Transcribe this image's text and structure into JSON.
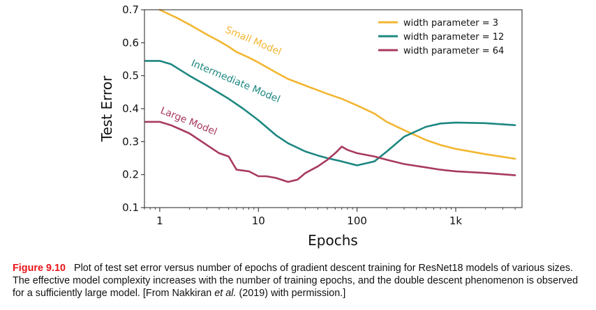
{
  "chart_data": {
    "type": "line",
    "xscale": "log",
    "xlim": [
      0.7,
      4700
    ],
    "ylim": [
      0.1,
      0.7
    ],
    "xlabel": "Epochs",
    "ylabel": "Test Error",
    "x_ticks": [
      {
        "value": 1,
        "label": "1"
      },
      {
        "value": 10,
        "label": "10"
      },
      {
        "value": 100,
        "label": "100"
      },
      {
        "value": 1000,
        "label": "1k"
      }
    ],
    "y_ticks": [
      {
        "value": 0.1,
        "label": "0.1"
      },
      {
        "value": 0.2,
        "label": "0.2"
      },
      {
        "value": 0.3,
        "label": "0.3"
      },
      {
        "value": 0.4,
        "label": "0.4"
      },
      {
        "value": 0.5,
        "label": "0.5"
      },
      {
        "value": 0.6,
        "label": "0.6"
      },
      {
        "value": 0.7,
        "label": "0.7"
      }
    ],
    "grid": false,
    "legend_position": "top-right",
    "series": [
      {
        "name": "width parameter = 3",
        "color": "#f2b631",
        "label": "Small Model",
        "x": [
          1,
          1.5,
          2,
          3,
          4,
          5,
          6,
          8,
          10,
          15,
          20,
          30,
          50,
          70,
          100,
          150,
          200,
          300,
          500,
          700,
          1000,
          2000,
          4000
        ],
        "y": [
          0.7,
          0.675,
          0.655,
          0.625,
          0.605,
          0.588,
          0.572,
          0.555,
          0.54,
          0.51,
          0.49,
          0.47,
          0.445,
          0.43,
          0.41,
          0.385,
          0.36,
          0.335,
          0.305,
          0.29,
          0.278,
          0.262,
          0.248
        ]
      },
      {
        "name": "width parameter = 12",
        "color": "#1d8781",
        "label": "Intermediate Model",
        "x": [
          0.72,
          1,
          1.3,
          2,
          3,
          5,
          7,
          10,
          15,
          20,
          30,
          40,
          50,
          70,
          100,
          150,
          200,
          300,
          500,
          700,
          1000,
          2000,
          4000
        ],
        "y": [
          0.545,
          0.545,
          0.535,
          0.5,
          0.47,
          0.43,
          0.4,
          0.365,
          0.32,
          0.295,
          0.27,
          0.258,
          0.25,
          0.24,
          0.228,
          0.24,
          0.27,
          0.315,
          0.345,
          0.355,
          0.358,
          0.356,
          0.35
        ]
      },
      {
        "name": "width parameter = 64",
        "color": "#a83a5c",
        "label": "Large Model",
        "x": [
          0.72,
          1,
          1.3,
          2,
          3,
          4,
          5,
          6,
          8,
          10,
          12,
          15,
          20,
          25,
          30,
          40,
          50,
          60,
          70,
          80,
          100,
          150,
          200,
          300,
          500,
          700,
          1000,
          2000,
          4000
        ],
        "y": [
          0.36,
          0.36,
          0.35,
          0.325,
          0.29,
          0.265,
          0.255,
          0.215,
          0.21,
          0.195,
          0.195,
          0.19,
          0.178,
          0.185,
          0.205,
          0.225,
          0.245,
          0.265,
          0.285,
          0.275,
          0.265,
          0.255,
          0.245,
          0.232,
          0.222,
          0.215,
          0.21,
          0.205,
          0.198
        ]
      }
    ]
  },
  "caption": {
    "figure_label": "Figure 9.10",
    "text_part1": "Plot of test set error versus number of epochs of gradient descent training for ResNet18 models of various sizes. The effective model complexity increases with the number of training epochs, and the double descent phenomenon is observed for a sufficiently large model. [From Nakkiran ",
    "et_al": "et al.",
    "text_part2": " (2019) with permission.]"
  }
}
